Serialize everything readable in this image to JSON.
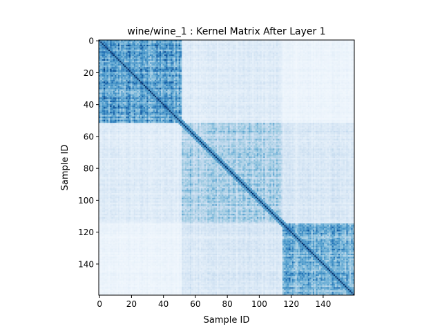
{
  "chart_data": {
    "type": "heatmap",
    "title": "wine/wine_1 : Kernel Matrix After Layer 1",
    "xlabel": "Sample ID",
    "ylabel": "Sample ID",
    "n": 160,
    "xlim": [
      0,
      159
    ],
    "ylim": [
      159,
      0
    ],
    "xticks": [
      0,
      20,
      40,
      60,
      80,
      100,
      120,
      140
    ],
    "xtick_labels": [
      "0",
      "20",
      "40",
      "60",
      "80",
      "100",
      "120",
      "140"
    ],
    "yticks": [
      0,
      20,
      40,
      60,
      80,
      100,
      120,
      140
    ],
    "ytick_labels": [
      "0",
      "20",
      "40",
      "60",
      "80",
      "100",
      "120",
      "140"
    ],
    "colormap": "Blues",
    "colormap_colors": [
      "#f7fbff",
      "#deebf7",
      "#c6dbef",
      "#9ecae1",
      "#6baed6",
      "#4292c6",
      "#2171b5",
      "#08519c",
      "#08306b"
    ],
    "clusters": [
      {
        "start": 0,
        "end": 51,
        "within_similarity": 0.55
      },
      {
        "start": 52,
        "end": 114,
        "within_similarity": 0.35
      },
      {
        "start": 115,
        "end": 159,
        "within_similarity": 0.5
      }
    ],
    "between_cluster_similarity": [
      [
        null,
        0.13,
        0.06
      ],
      [
        0.13,
        null,
        0.16
      ],
      [
        0.06,
        0.16,
        null
      ]
    ],
    "diagonal_value": 1.0,
    "grid": false,
    "colorbar": false
  }
}
